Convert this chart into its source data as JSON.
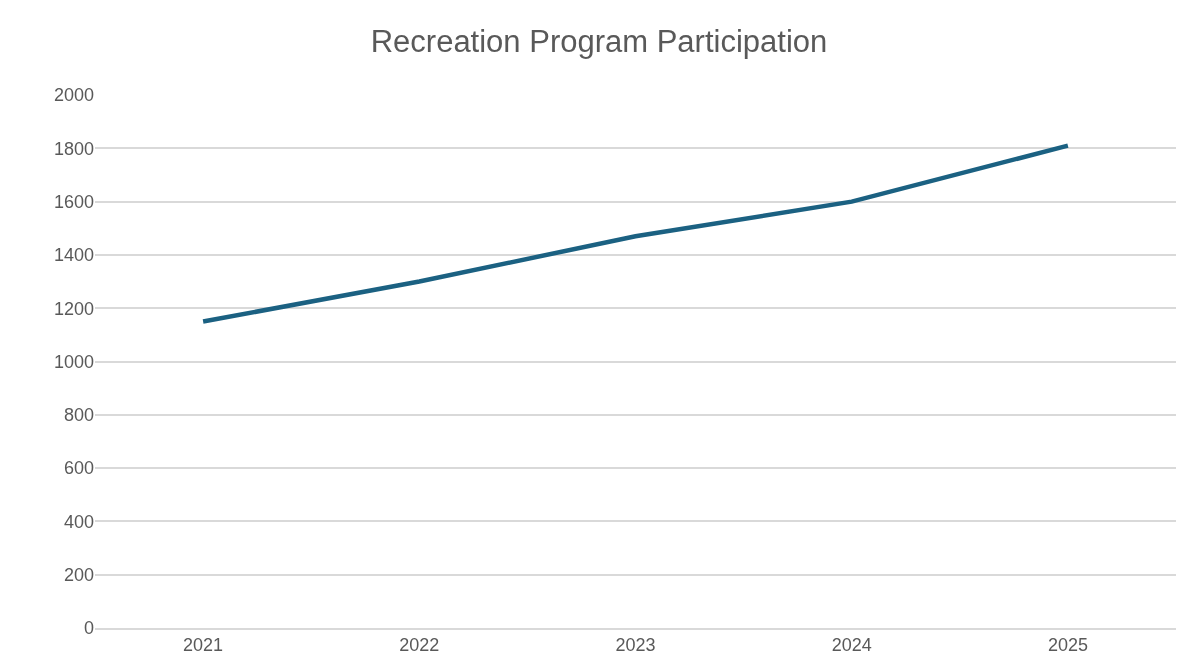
{
  "chart_data": {
    "type": "line",
    "title": "Recreation Program Participation",
    "categories": [
      "2021",
      "2022",
      "2023",
      "2024",
      "2025"
    ],
    "series": [
      {
        "color": "#1b6182",
        "values": [
          1150,
          1300,
          1470,
          1600,
          1810
        ]
      }
    ],
    "ylim": [
      0,
      2000
    ],
    "yticks": [
      0,
      200,
      400,
      600,
      800,
      1000,
      1200,
      1400,
      1600,
      1800,
      2000
    ],
    "grid": "y",
    "marker": "none",
    "line_style": "solid"
  }
}
